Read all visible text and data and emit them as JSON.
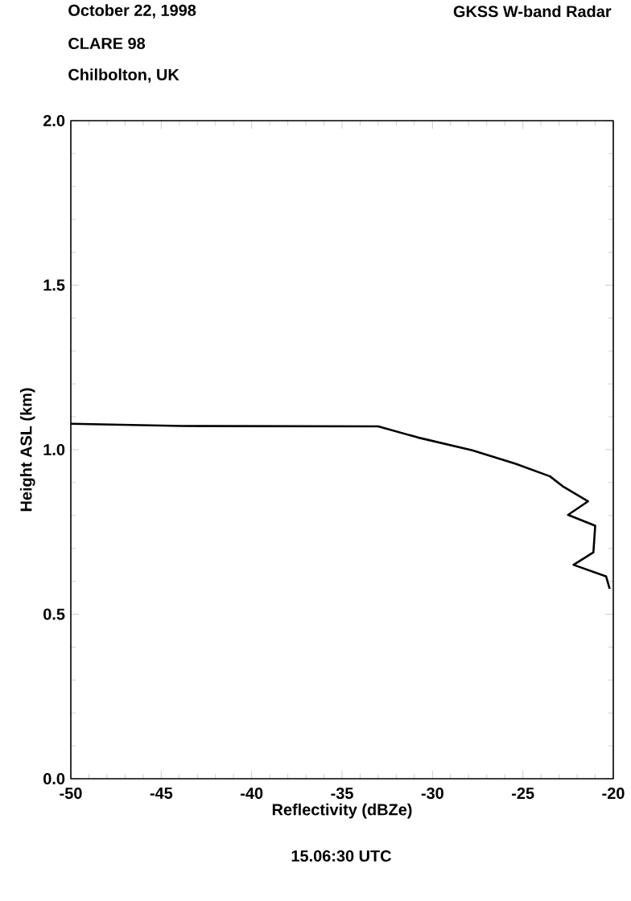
{
  "chart_data": {
    "type": "line",
    "xlabel": "Reflectivity (dBZe)",
    "ylabel": "Height ASL (km)",
    "annotations": [
      "October 22, 1998",
      "CLARE 98",
      "Chilbolton, UK",
      "GKSS  W-band Radar",
      "15.06:30 UTC"
    ],
    "series": [
      {
        "color": "#000000",
        "x": [
          -50,
          -43.9,
          -33.0,
          -30.8,
          -27.8,
          -25.4,
          -23.5,
          -22.75,
          -21.4,
          -22.5,
          -21.0,
          -21.1,
          -22.2,
          -20.4,
          -20.2
        ],
        "values": [
          1.079,
          1.072,
          1.071,
          1.037,
          0.998,
          0.957,
          0.919,
          0.887,
          0.843,
          0.802,
          0.769,
          0.688,
          0.65,
          0.615,
          0.577
        ]
      }
    ],
    "xlim": [
      -50,
      -20
    ],
    "ylim": [
      0,
      2
    ],
    "xticks": [
      -50,
      -45,
      -40,
      -35,
      -30,
      -25,
      -20
    ],
    "yticks": [
      {
        "value": 0,
        "label": "0.0"
      },
      {
        "value": 0.5,
        "label": "0.5"
      },
      {
        "value": 1,
        "label": "1.0"
      },
      {
        "value": 1.5,
        "label": "1.5"
      },
      {
        "value": 2,
        "label": "2.0"
      }
    ],
    "grid": false,
    "marker": "none",
    "line_style": "solid"
  }
}
